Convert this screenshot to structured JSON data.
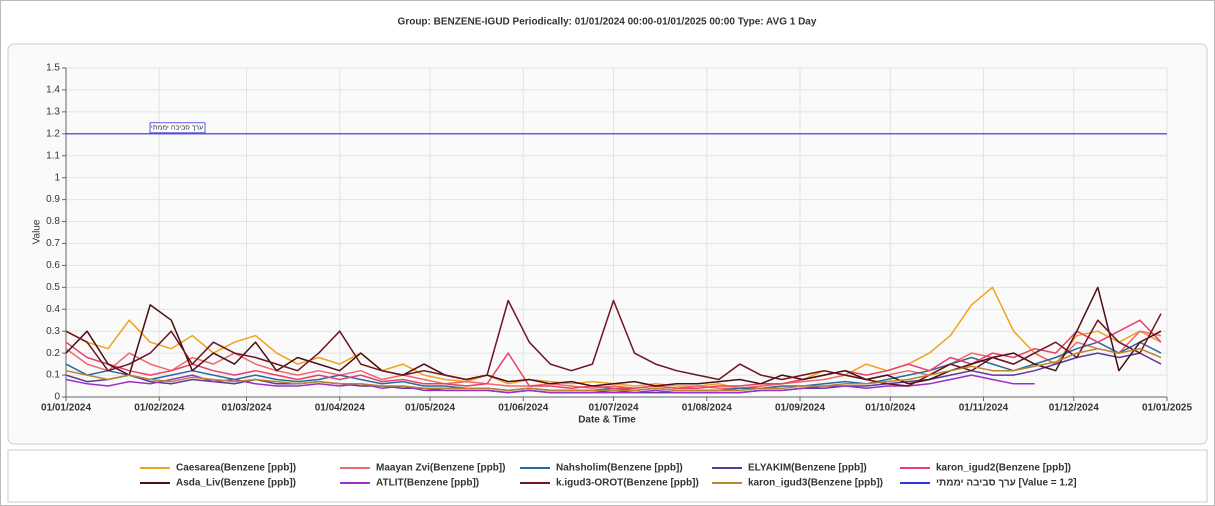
{
  "chart_data": {
    "type": "line",
    "title": "Group: BENZENE-IGUD Periodically: 01/01/2024 00:00-01/01/2025 00:00  Type: AVG 1 Day",
    "xlabel": "Date & Time",
    "ylabel": "Value",
    "grid": true,
    "xlim": [
      "01/01/2024",
      "01/01/2025"
    ],
    "xticks": [
      "01/01/2024",
      "01/02/2024",
      "01/03/2024",
      "01/04/2024",
      "01/05/2024",
      "01/06/2024",
      "01/07/2024",
      "01/08/2024",
      "01/09/2024",
      "01/10/2024",
      "01/11/2024",
      "01/12/2024",
      "01/01/2025"
    ],
    "ylim": [
      0,
      1.5
    ],
    "yticks": [
      0,
      0.1,
      0.2,
      0.3,
      0.4,
      0.5,
      0.6,
      0.7,
      0.8,
      0.9,
      1,
      1.1,
      1.2,
      1.3,
      1.4,
      1.5
    ],
    "x": [
      "01/01/2024",
      "08/01/2024",
      "15/01/2024",
      "22/01/2024",
      "29/01/2024",
      "05/02/2024",
      "12/02/2024",
      "19/02/2024",
      "26/02/2024",
      "04/03/2024",
      "11/03/2024",
      "18/03/2024",
      "25/03/2024",
      "01/04/2024",
      "08/04/2024",
      "15/04/2024",
      "22/04/2024",
      "29/04/2024",
      "06/05/2024",
      "13/05/2024",
      "20/05/2024",
      "27/05/2024",
      "03/06/2024",
      "10/06/2024",
      "17/06/2024",
      "24/06/2024",
      "01/07/2024",
      "08/07/2024",
      "15/07/2024",
      "22/07/2024",
      "29/07/2024",
      "05/08/2024",
      "12/08/2024",
      "19/08/2024",
      "26/08/2024",
      "02/09/2024",
      "09/09/2024",
      "16/09/2024",
      "23/09/2024",
      "30/09/2024",
      "07/10/2024",
      "14/10/2024",
      "21/10/2024",
      "28/10/2024",
      "04/11/2024",
      "11/11/2024",
      "18/11/2024",
      "25/11/2024",
      "02/12/2024",
      "09/12/2024",
      "16/12/2024",
      "23/12/2024",
      "30/12/2024"
    ],
    "series": [
      {
        "name": "Caesarea(Benzene [ppb])",
        "color": "#f0a21c",
        "values": [
          0.3,
          0.25,
          0.22,
          0.35,
          0.25,
          0.22,
          0.28,
          0.2,
          0.25,
          0.28,
          0.2,
          0.15,
          0.18,
          0.15,
          0.2,
          0.12,
          0.15,
          0.1,
          0.08,
          0.07,
          0.1,
          0.06,
          0.08,
          0.07,
          0.06,
          0.07,
          0.06,
          0.05,
          0.06,
          0.05,
          0.05,
          0.06,
          0.04,
          0.05,
          0.06,
          0.08,
          0.12,
          0.1,
          0.15,
          0.12,
          0.15,
          0.2,
          0.28,
          0.42,
          0.5,
          0.3,
          0.2,
          0.15,
          0.28,
          0.3,
          0.25,
          0.3,
          0.25
        ]
      },
      {
        "name": "Maayan Zvi(Benzene [ppb])",
        "color": "#f0686f",
        "values": [
          0.22,
          0.15,
          0.12,
          0.2,
          0.15,
          0.12,
          0.18,
          0.15,
          0.2,
          0.15,
          0.12,
          0.1,
          0.12,
          0.1,
          0.12,
          0.08,
          0.1,
          0.08,
          0.06,
          0.07,
          0.06,
          0.05,
          0.05,
          0.06,
          0.05,
          0.04,
          0.05,
          0.04,
          0.05,
          0.04,
          0.05,
          0.04,
          0.04,
          0.05,
          0.06,
          0.07,
          0.08,
          0.1,
          0.08,
          0.1,
          0.12,
          0.1,
          0.15,
          0.2,
          0.18,
          0.15,
          0.2,
          0.15,
          0.25,
          0.22,
          0.2,
          0.3,
          0.28
        ]
      },
      {
        "name": "Nahsholim(Benzene [ppb])",
        "color": "#2b6a9e",
        "values": [
          0.15,
          0.1,
          0.12,
          0.1,
          0.08,
          0.1,
          0.12,
          0.1,
          0.08,
          0.1,
          0.08,
          0.07,
          0.08,
          0.1,
          0.08,
          0.06,
          0.07,
          0.05,
          0.05,
          0.04,
          0.04,
          0.03,
          0.04,
          0.03,
          0.03,
          0.03,
          0.04,
          0.03,
          0.04,
          0.03,
          0.03,
          0.03,
          0.04,
          0.04,
          0.05,
          0.05,
          0.06,
          0.07,
          0.06,
          0.08,
          0.1,
          0.12,
          0.15,
          0.18,
          0.15,
          0.12,
          0.15,
          0.18,
          0.22,
          0.25,
          0.2,
          0.25,
          0.2
        ]
      },
      {
        "name": "ELYAKIM(Benzene [ppb])",
        "color": "#5b3a9a",
        "values": [
          0.1,
          0.07,
          0.08,
          0.1,
          0.07,
          0.06,
          0.08,
          0.07,
          0.06,
          0.08,
          0.06,
          0.06,
          0.07,
          0.06,
          0.05,
          0.05,
          0.04,
          0.04,
          0.03,
          0.03,
          0.03,
          0.02,
          0.03,
          0.02,
          0.02,
          0.02,
          0.03,
          0.02,
          0.02,
          0.02,
          0.02,
          0.02,
          0.02,
          0.03,
          0.03,
          0.04,
          0.04,
          0.05,
          0.05,
          0.06,
          0.07,
          0.08,
          0.1,
          0.12,
          0.1,
          0.1,
          0.12,
          0.15,
          0.18,
          0.2,
          0.18,
          0.2,
          0.15
        ]
      },
      {
        "name": "karon_igud2(Benzene [ppb])",
        "color": "#e8406a",
        "values": [
          0.25,
          0.18,
          0.15,
          0.12,
          0.1,
          0.12,
          0.15,
          0.12,
          0.1,
          0.12,
          0.1,
          0.08,
          0.1,
          0.08,
          0.1,
          0.07,
          0.08,
          0.06,
          0.06,
          0.05,
          0.06,
          0.2,
          0.05,
          0.05,
          0.04,
          0.05,
          0.04,
          0.04,
          0.05,
          0.04,
          0.04,
          0.05,
          0.05,
          0.06,
          0.06,
          0.08,
          0.1,
          0.12,
          0.1,
          0.12,
          0.15,
          0.12,
          0.18,
          0.15,
          0.2,
          0.18,
          0.22,
          0.2,
          0.3,
          0.25,
          0.3,
          0.35,
          0.25
        ]
      },
      {
        "name": "Asda_Liv(Benzene [ppb])",
        "color": "#4a0f12",
        "values": [
          0.2,
          0.3,
          0.15,
          0.1,
          0.42,
          0.35,
          0.12,
          0.2,
          0.15,
          0.25,
          0.12,
          0.18,
          0.15,
          0.12,
          0.2,
          0.12,
          0.1,
          0.15,
          0.1,
          0.08,
          0.1,
          0.07,
          0.08,
          0.06,
          0.07,
          0.05,
          0.06,
          0.07,
          0.05,
          0.06,
          0.06,
          0.07,
          0.08,
          0.06,
          0.1,
          0.08,
          0.1,
          0.12,
          0.08,
          0.1,
          0.06,
          0.08,
          0.12,
          0.15,
          0.18,
          0.2,
          0.15,
          0.12,
          0.3,
          0.5,
          0.12,
          0.25,
          0.3
        ]
      },
      {
        "name": "ATLIT(Benzene [ppb])",
        "color": "#9b30c8",
        "values": [
          0.08,
          0.06,
          0.05,
          0.07,
          0.06,
          0.08,
          0.1,
          0.07,
          0.08,
          0.06,
          0.05,
          0.05,
          0.06,
          0.05,
          0.06,
          0.04,
          0.05,
          0.03,
          0.03,
          0.03,
          0.03,
          0.02,
          0.03,
          0.02,
          0.02,
          0.02,
          0.02,
          0.02,
          0.03,
          0.02,
          0.02,
          0.02,
          0.02,
          0.03,
          0.03,
          0.04,
          0.05,
          0.05,
          0.04,
          0.05,
          0.05,
          0.06,
          0.08,
          0.1,
          0.08,
          0.06,
          0.06,
          null,
          null,
          null,
          null,
          null,
          null
        ]
      },
      {
        "name": "k.igud3-OROT(Benzene [ppb])",
        "color": "#6e1422",
        "values": [
          0.3,
          0.25,
          0.12,
          0.15,
          0.2,
          0.3,
          0.15,
          0.25,
          0.2,
          0.18,
          0.15,
          0.12,
          0.2,
          0.3,
          0.15,
          0.12,
          0.1,
          0.12,
          0.1,
          0.08,
          0.1,
          0.44,
          0.25,
          0.15,
          0.12,
          0.15,
          0.44,
          0.2,
          0.15,
          0.12,
          0.1,
          0.08,
          0.15,
          0.1,
          0.08,
          0.1,
          0.12,
          0.1,
          0.08,
          0.06,
          0.05,
          0.1,
          0.15,
          0.12,
          0.18,
          0.15,
          0.2,
          0.25,
          0.18,
          0.35,
          0.25,
          0.2,
          0.38
        ]
      },
      {
        "name": "karon_igud3(Benzene [ppb])",
        "color": "#b8862b",
        "values": [
          0.12,
          0.1,
          0.08,
          0.1,
          0.08,
          0.07,
          0.09,
          0.08,
          0.07,
          0.08,
          0.07,
          0.06,
          0.07,
          0.06,
          0.06,
          0.05,
          0.05,
          0.04,
          0.04,
          0.04,
          0.04,
          0.03,
          0.04,
          0.03,
          0.03,
          0.03,
          0.03,
          0.03,
          0.04,
          0.03,
          0.03,
          0.03,
          0.03,
          0.04,
          0.04,
          0.05,
          0.05,
          0.06,
          0.06,
          0.07,
          0.08,
          0.1,
          0.12,
          0.14,
          0.12,
          0.12,
          0.14,
          0.16,
          0.2,
          0.22,
          0.2,
          0.22,
          0.18
        ]
      }
    ],
    "threshold": {
      "value": 1.2,
      "color": "#3333dd",
      "label": "ערך סביבה יממתי",
      "legend": "ערך סביבה יממתי [Value = 1.2]"
    }
  }
}
